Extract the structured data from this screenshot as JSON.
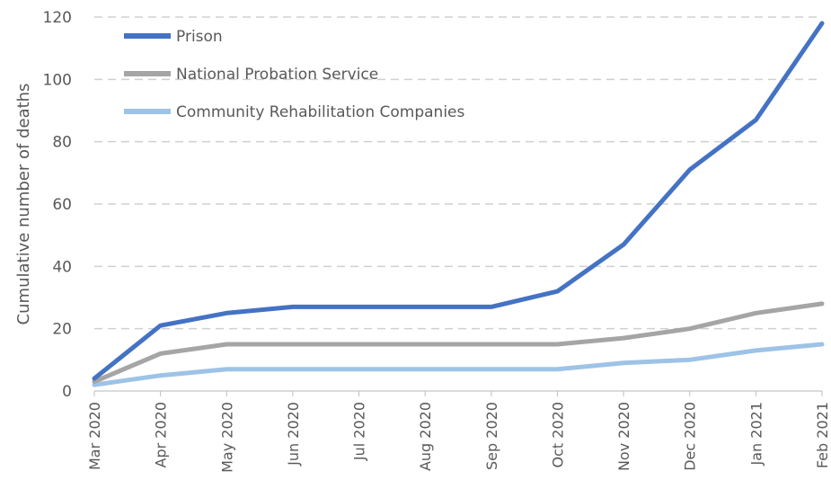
{
  "chart_data": {
    "type": "line",
    "title": "",
    "xlabel": "",
    "ylabel": "Cumulative number of deaths",
    "ylim": [
      0,
      120
    ],
    "yticks": [
      0,
      20,
      40,
      60,
      80,
      100,
      120
    ],
    "grid": "horizontal dashed",
    "legend_position": "top-left",
    "categories": [
      "Mar 2020",
      "Apr 2020",
      "May 2020",
      "Jun 2020",
      "Jul 2020",
      "Aug 2020",
      "Sep 2020",
      "Oct 2020",
      "Nov 2020",
      "Dec 2020",
      "Jan 2021",
      "Feb 2021"
    ],
    "series": [
      {
        "name": "Prison",
        "color": "#4472c4",
        "values": [
          4,
          21,
          25,
          27,
          27,
          27,
          27,
          32,
          47,
          71,
          87,
          118
        ]
      },
      {
        "name": "National Probation Service",
        "color": "#a5a5a5",
        "values": [
          3,
          12,
          15,
          15,
          15,
          15,
          15,
          15,
          17,
          20,
          25,
          28
        ]
      },
      {
        "name": "Community Rehabilitation Companies",
        "color": "#9dc3e6",
        "values": [
          2,
          5,
          7,
          7,
          7,
          7,
          7,
          7,
          9,
          10,
          13,
          15
        ]
      }
    ]
  }
}
